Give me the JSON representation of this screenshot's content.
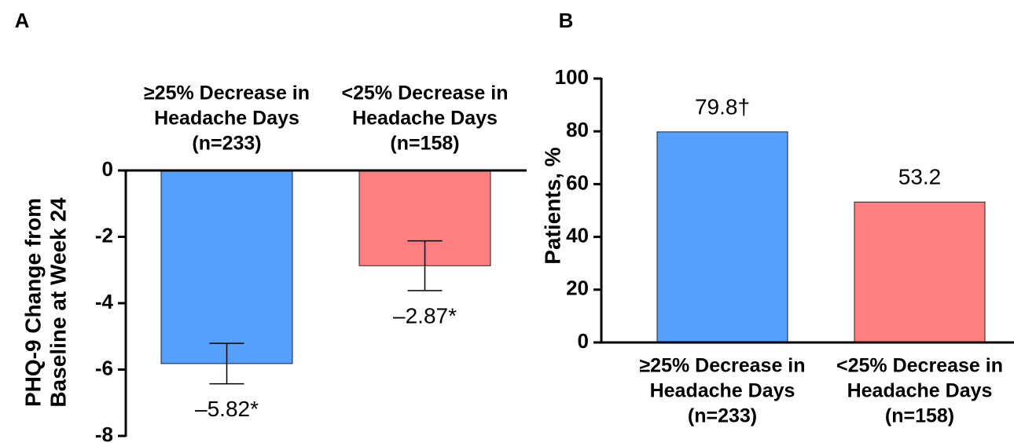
{
  "chart_data": [
    {
      "type": "bar",
      "panel_label": "A",
      "ylabel": [
        "PHQ-9 Change from",
        "Baseline at Week 24"
      ],
      "categories": [
        [
          "≥25% Decrease in",
          "Headache Days",
          "(n=233)"
        ],
        [
          "<25% Decrease in",
          "Headache Days",
          "(n=158)"
        ]
      ],
      "values": [
        -5.82,
        -2.87
      ],
      "errors": [
        0.61,
        0.75
      ],
      "value_labels": [
        "–5.82*",
        "–2.87*"
      ],
      "colors": [
        "#559ffd",
        "#fe8080"
      ],
      "ylim": [
        -8,
        0
      ],
      "yticks": [
        0,
        -2,
        -4,
        -6,
        -8
      ]
    },
    {
      "type": "bar",
      "panel_label": "B",
      "ylabel": [
        "Patients, %"
      ],
      "categories": [
        [
          "≥25% Decrease in",
          "Headache Days",
          "(n=233)"
        ],
        [
          "<25% Decrease in",
          "Headache Days",
          "(n=158)"
        ]
      ],
      "values": [
        79.8,
        53.2
      ],
      "value_labels": [
        "79.8†",
        "53.2"
      ],
      "colors": [
        "#559ffd",
        "#fe8080"
      ],
      "ylim": [
        0,
        100
      ],
      "yticks": [
        0,
        20,
        40,
        60,
        80,
        100
      ]
    }
  ]
}
